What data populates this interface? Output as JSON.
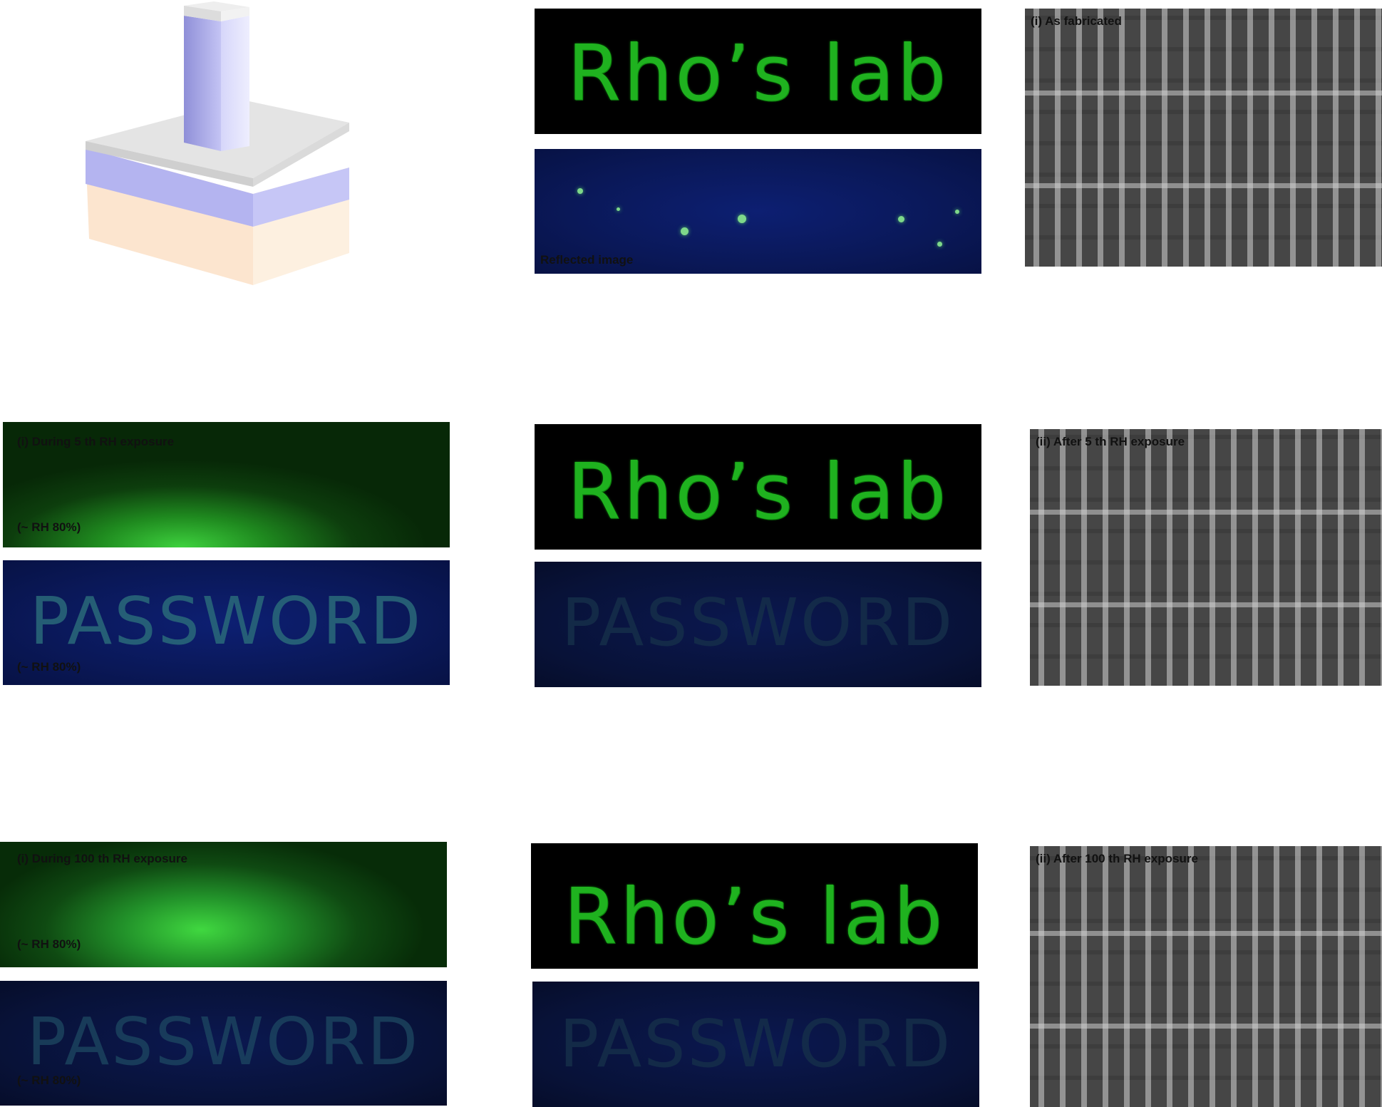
{
  "panels": {
    "r1c2_top": {
      "text": "Rho’s lab"
    },
    "r1c2_bottom": {
      "label": "Reflected image"
    },
    "r1c3": {
      "label": "(i) As fabricated"
    },
    "r2c1_top": {
      "label": "(i) During 5 th RH exposure",
      "sub_label": "(~ RH 80%)"
    },
    "r2c1_bottom": {
      "text": "PASSWORD",
      "sub_label": "(~ RH 80%)"
    },
    "r2c2_top": {
      "text": "Rho’s lab"
    },
    "r2c2_bottom": {
      "text": "PASSWORD"
    },
    "r2c3": {
      "label": "(ii) After 5 th RH exposure"
    },
    "r3c1_top": {
      "label": "(i) During 100 th RH exposure",
      "sub_label": "(~ RH 80%)"
    },
    "r3c1_bottom": {
      "text": "PASSWORD",
      "sub_label": "(~ RH 80%)"
    },
    "r3c2_top": {
      "text": "Rho’s lab"
    },
    "r3c2_bottom": {
      "text": "PASSWORD"
    },
    "r3c3": {
      "label": "(ii) After 100 th RH exposure"
    }
  },
  "colors": {
    "pillar": "#a9a9e8",
    "cap": "#e2e2e2",
    "substrate_top_layer": "#b8b8f0",
    "substrate_base": "#fbe3c8",
    "text_green": "#1fb21f",
    "blue_bg": "#0d1f72"
  }
}
